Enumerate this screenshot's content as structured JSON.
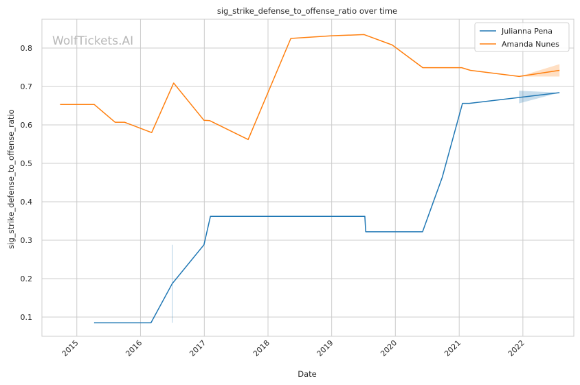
{
  "chart_data": {
    "type": "line",
    "title": "sig_strike_defense_to_offense_ratio over time",
    "xlabel": "Date",
    "ylabel": "sig_strike_defense_to_offense_ratio",
    "watermark": "WolfTickets.AI",
    "xlim": [
      "2014-06-15",
      "2022-10-20"
    ],
    "ylim": [
      0.05,
      0.875
    ],
    "x_ticks": [
      "2015",
      "2016",
      "2017",
      "2018",
      "2019",
      "2020",
      "2021",
      "2022"
    ],
    "y_ticks": [
      0.1,
      0.2,
      0.3,
      0.4,
      0.5,
      0.6,
      0.7,
      0.8
    ],
    "grid": true,
    "legend_position": "top-right",
    "series": [
      {
        "name": "Julianna Pena",
        "color": "#1f77b4",
        "points": [
          {
            "x": "2015-04-10",
            "y": 0.085
          },
          {
            "x": "2016-03-01",
            "y": 0.085
          },
          {
            "x": "2016-07-01",
            "y": 0.187
          },
          {
            "x": "2016-12-30",
            "y": 0.288
          },
          {
            "x": "2017-02-05",
            "y": 0.362
          },
          {
            "x": "2019-07-10",
            "y": 0.362
          },
          {
            "x": "2019-07-15",
            "y": 0.322
          },
          {
            "x": "2020-06-05",
            "y": 0.322
          },
          {
            "x": "2020-09-26",
            "y": 0.464
          },
          {
            "x": "2021-01-20",
            "y": 0.656
          },
          {
            "x": "2021-02-28",
            "y": 0.656
          },
          {
            "x": "2022-07-30",
            "y": 0.684
          }
        ],
        "ci_bands": [
          {
            "x": [
              "2021-12-10",
              "2022-07-30"
            ],
            "lower": [
              0.656,
              0.684
            ],
            "upper": [
              0.689,
              0.684
            ]
          }
        ],
        "ci_vlines": [
          {
            "x": "2016-07-01",
            "lower": 0.085,
            "upper": 0.288
          }
        ]
      },
      {
        "name": "Amanda Nunes",
        "color": "#ff7f0e",
        "points": [
          {
            "x": "2014-09-27",
            "y": 0.653
          },
          {
            "x": "2015-04-11",
            "y": 0.653
          },
          {
            "x": "2015-08-08",
            "y": 0.607
          },
          {
            "x": "2015-10-01",
            "y": 0.607
          },
          {
            "x": "2016-03-05",
            "y": 0.58
          },
          {
            "x": "2016-07-09",
            "y": 0.709
          },
          {
            "x": "2016-12-30",
            "y": 0.612
          },
          {
            "x": "2017-02-01",
            "y": 0.611
          },
          {
            "x": "2017-09-09",
            "y": 0.562
          },
          {
            "x": "2018-05-12",
            "y": 0.825
          },
          {
            "x": "2019-01-01",
            "y": 0.832
          },
          {
            "x": "2019-07-06",
            "y": 0.835
          },
          {
            "x": "2019-12-14",
            "y": 0.808
          },
          {
            "x": "2020-06-06",
            "y": 0.749
          },
          {
            "x": "2021-01-15",
            "y": 0.749
          },
          {
            "x": "2021-03-06",
            "y": 0.742
          },
          {
            "x": "2021-12-11",
            "y": 0.726
          },
          {
            "x": "2022-07-30",
            "y": 0.742
          }
        ],
        "ci_bands": [
          {
            "x": [
              "2021-12-11",
              "2022-07-30"
            ],
            "lower": [
              0.726,
              0.726
            ],
            "upper": [
              0.726,
              0.758
            ]
          }
        ],
        "ci_vlines": []
      }
    ]
  }
}
